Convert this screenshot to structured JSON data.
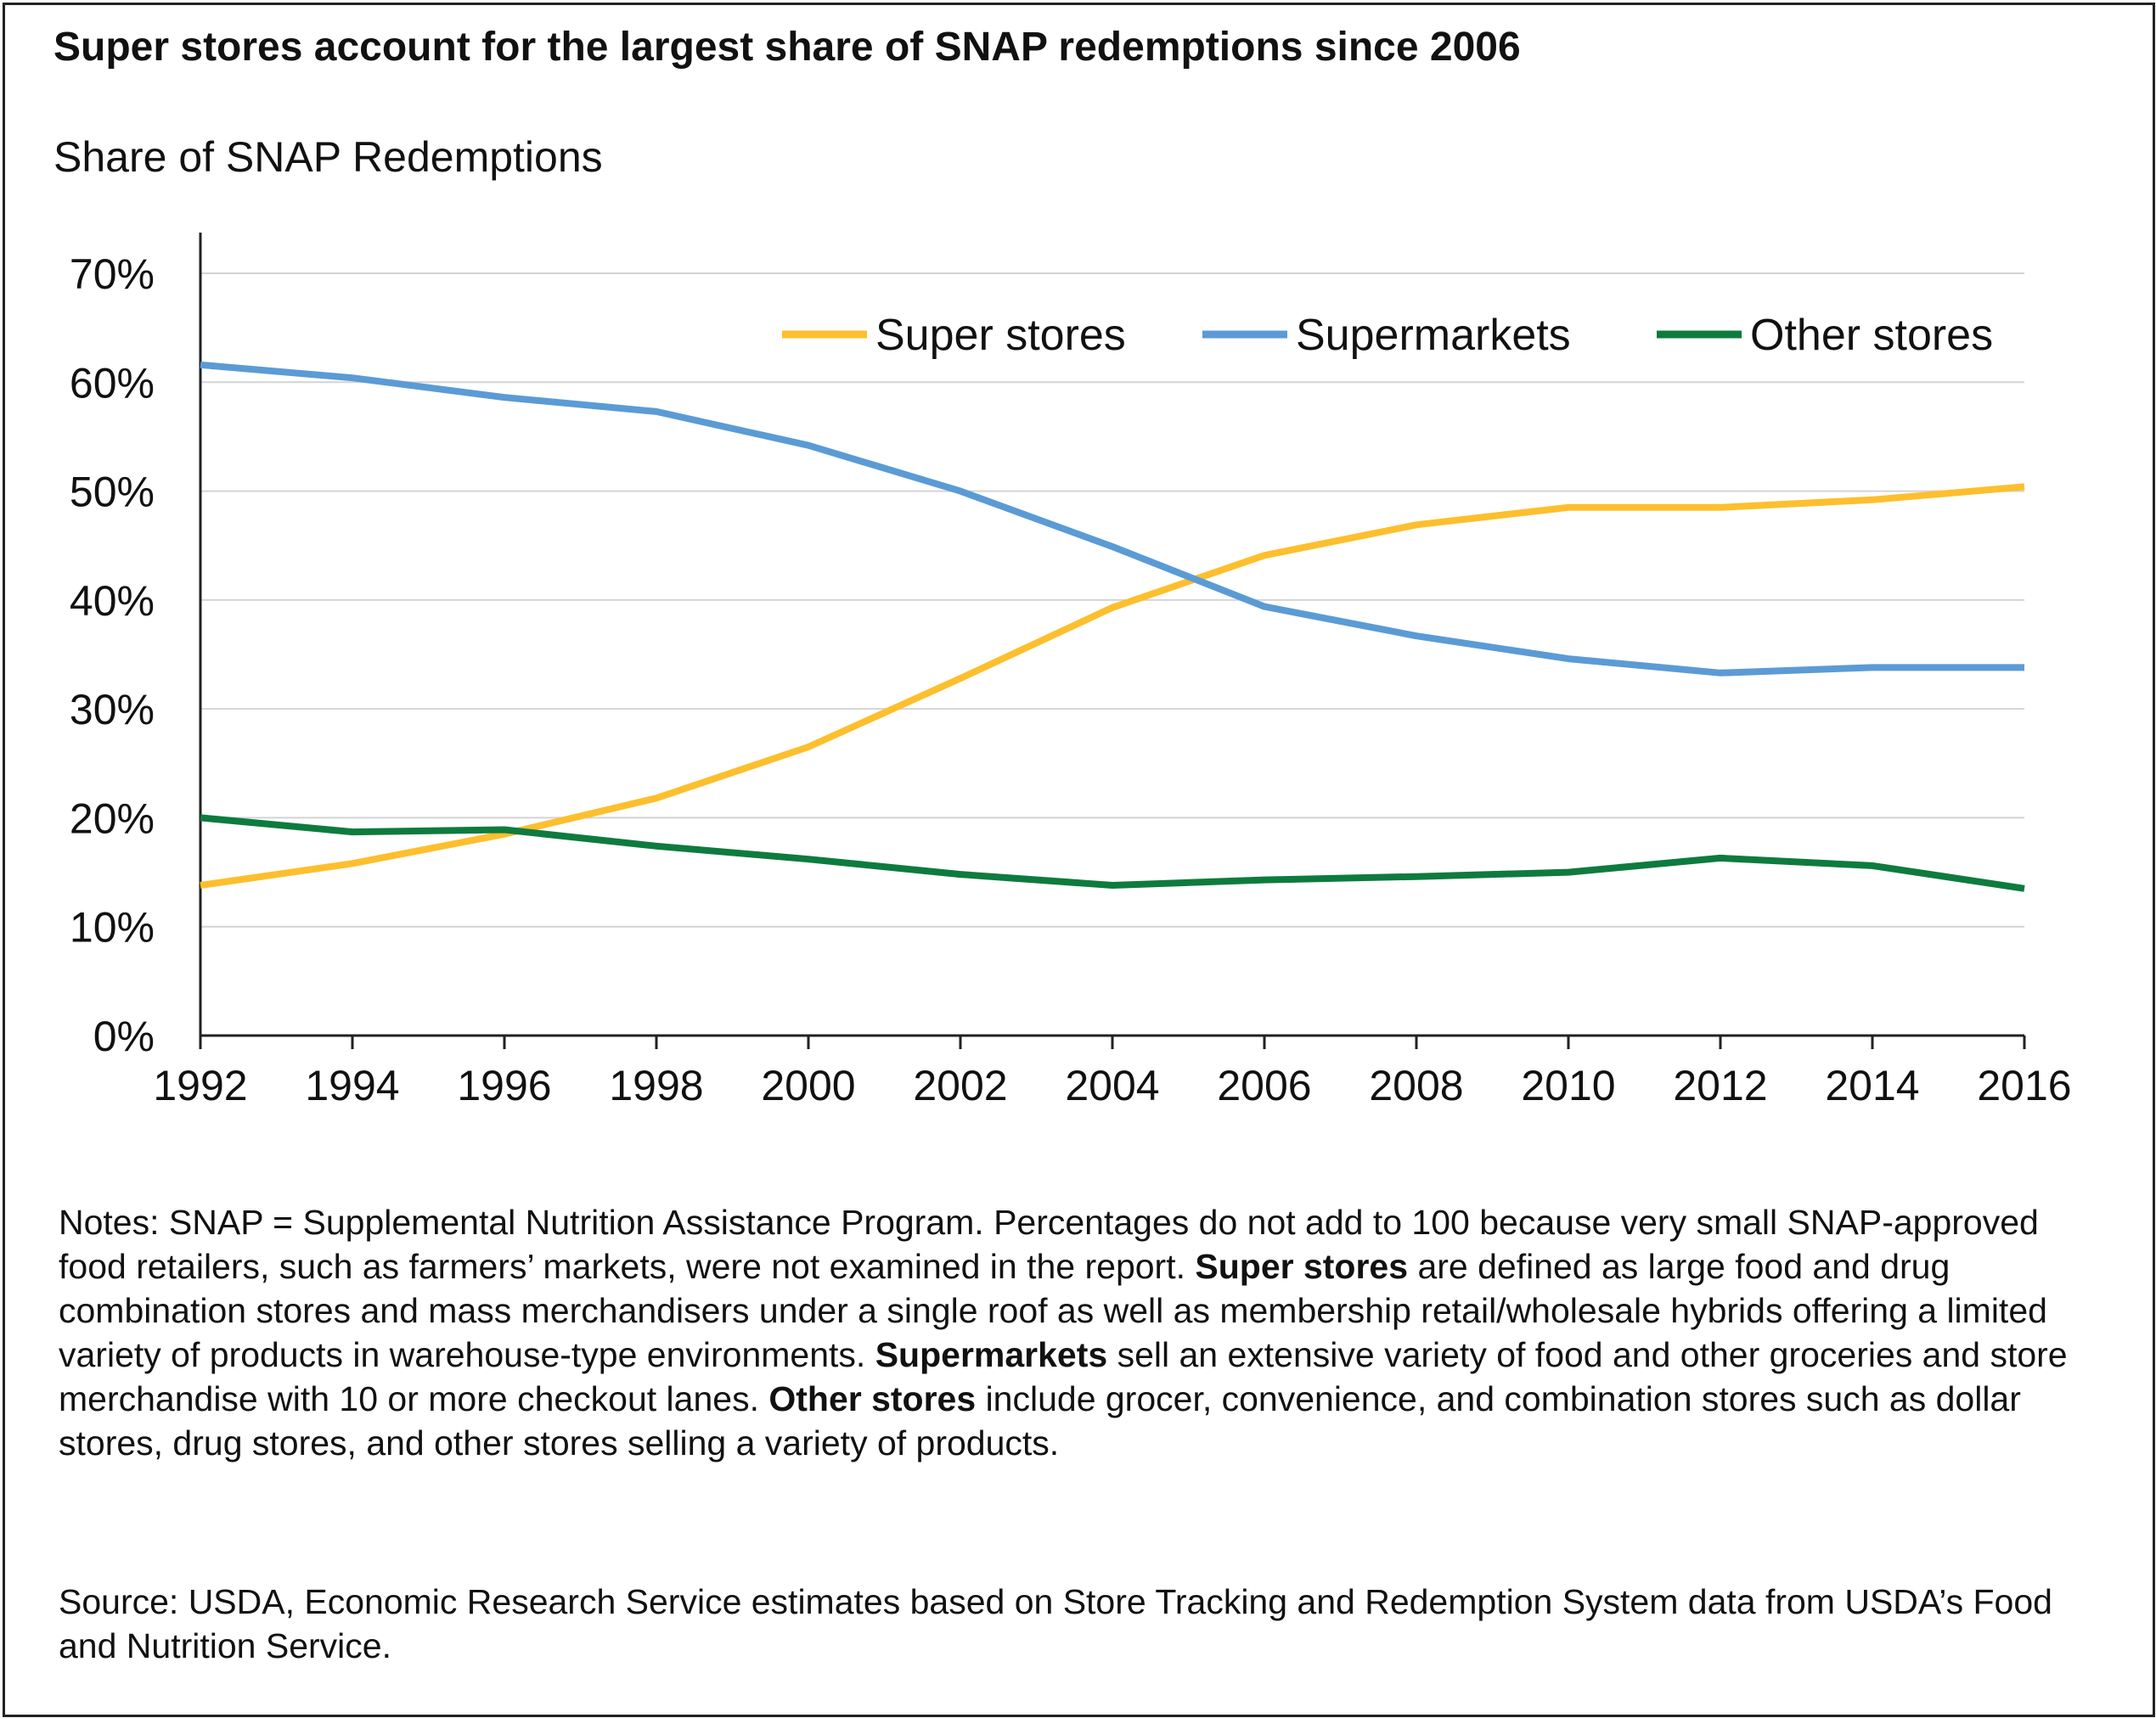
{
  "title": "Super stores account for the largest share of SNAP redemptions since 2006",
  "ylabel": "Share of SNAP Redemptions",
  "notes": {
    "p1": "Notes: SNAP = Supplemental Nutrition Assistance Program. Percentages do not add to 100 because very small SNAP-approved food retailers, such as farmers’ markets, were not examined in the report. ",
    "b1": "Super stores",
    "p2": " are defined as large food and drug combination stores and mass merchandisers under a single roof as well as membership retail/wholesale hybrids offering a limited variety of products in warehouse-type environments. ",
    "b2": "Supermarkets",
    "p3": " sell an extensive variety of food and other groceries and store merchandise with 10 or more checkout lanes. ",
    "b3": "Other stores",
    "p4": " include grocer, convenience, and combination stores such as dollar stores, drug stores, and other stores selling a variety of products."
  },
  "source": "Source: USDA, Economic Research Service estimates based on Store Tracking and Redemption System data from USDA’s Food and Nutrition Service.",
  "chart_data": {
    "type": "line",
    "title": "Super stores account for the largest share of SNAP redemptions since 2006",
    "ylabel": "Share of SNAP Redemptions",
    "xlabel": "",
    "x": [
      1992,
      1994,
      1996,
      1998,
      2000,
      2002,
      2004,
      2006,
      2008,
      2010,
      2012,
      2014,
      2016
    ],
    "xticks": [
      "1992",
      "1994",
      "1996",
      "1998",
      "2000",
      "2002",
      "2004",
      "2006",
      "2008",
      "2010",
      "2012",
      "2014",
      "2016"
    ],
    "yticks": [
      "0%",
      "10%",
      "20%",
      "30%",
      "40%",
      "50%",
      "60%",
      "70%"
    ],
    "ylim": [
      0,
      70
    ],
    "xlim": [
      1992,
      2016
    ],
    "grid": true,
    "legend_position": "top-right",
    "series": [
      {
        "name": "Super stores",
        "color": "#FDBF2D",
        "values": [
          13.8,
          15.8,
          18.5,
          21.8,
          26.5,
          32.8,
          39.3,
          44.1,
          46.9,
          48.5,
          48.5,
          49.2,
          50.4
        ]
      },
      {
        "name": "Supermarkets",
        "color": "#5B9BD5",
        "values": [
          61.6,
          60.4,
          58.6,
          57.3,
          54.2,
          50.0,
          44.9,
          39.4,
          36.7,
          34.6,
          33.3,
          33.8,
          33.8
        ]
      },
      {
        "name": "Other stores",
        "color": "#0E7B3E",
        "values": [
          20.0,
          18.7,
          18.9,
          17.4,
          16.2,
          14.8,
          13.8,
          14.3,
          14.6,
          15.0,
          16.3,
          15.6,
          13.5
        ]
      }
    ]
  }
}
